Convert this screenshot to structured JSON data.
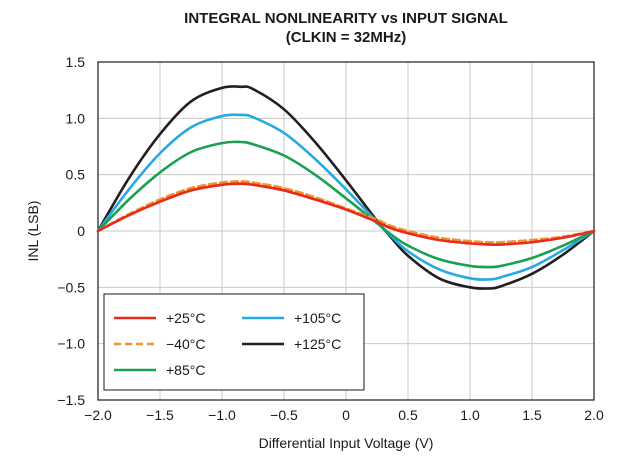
{
  "chart_data": {
    "type": "line",
    "title": "INTEGRAL NONLINEARITY vs INPUT SIGNAL",
    "subtitle": "(CLKIN = 32MHz)",
    "xlabel": "Differential Input Voltage (V)",
    "ylabel": "INL (LSB)",
    "xlim": [
      -2.0,
      2.0
    ],
    "ylim": [
      -1.5,
      1.5
    ],
    "xticks": [
      -2.0,
      -1.5,
      -1.0,
      -0.5,
      0,
      0.5,
      1.0,
      1.5,
      2.0
    ],
    "xtick_labels": [
      "−2.0",
      "−1.5",
      "−1.0",
      "−0.5",
      "0",
      "0.5",
      "1.0",
      "1.5",
      "2.0"
    ],
    "yticks": [
      1.5,
      1.0,
      0.5,
      0,
      -0.5,
      -1.0,
      -1.5
    ],
    "ytick_labels": [
      "1.5",
      "1.0",
      "0.5",
      "0",
      "−0.5",
      "−1.0",
      "−1.5"
    ],
    "grid": true,
    "legend_position": "bottom-left",
    "x": [
      -2.0,
      -1.75,
      -1.5,
      -1.25,
      -1.0,
      -0.85,
      -0.75,
      -0.5,
      -0.25,
      0,
      0.25,
      0.35,
      0.5,
      0.75,
      1.0,
      1.15,
      1.25,
      1.5,
      1.75,
      2.0
    ],
    "series": [
      {
        "name": "+25°C",
        "color": "#e8291c",
        "dash": "solid",
        "values": [
          0,
          0.14,
          0.26,
          0.36,
          0.41,
          0.42,
          0.41,
          0.36,
          0.28,
          0.19,
          0.08,
          0.03,
          -0.02,
          -0.08,
          -0.11,
          -0.12,
          -0.12,
          -0.1,
          -0.06,
          0
        ]
      },
      {
        "name": "−40°C",
        "color": "#f0922e",
        "dash": "dashed",
        "values": [
          0,
          0.15,
          0.28,
          0.38,
          0.43,
          0.44,
          0.43,
          0.38,
          0.3,
          0.2,
          0.1,
          0.05,
          0.0,
          -0.06,
          -0.09,
          -0.1,
          -0.1,
          -0.08,
          -0.05,
          0
        ]
      },
      {
        "name": "+85°C",
        "color": "#1aa050",
        "dash": "solid",
        "values": [
          0,
          0.28,
          0.52,
          0.7,
          0.78,
          0.79,
          0.77,
          0.67,
          0.5,
          0.29,
          0.07,
          -0.02,
          -0.13,
          -0.25,
          -0.31,
          -0.32,
          -0.31,
          -0.24,
          -0.13,
          0
        ]
      },
      {
        "name": "+105°C",
        "color": "#27a9e1",
        "dash": "solid",
        "values": [
          0,
          0.37,
          0.69,
          0.92,
          1.02,
          1.03,
          1.01,
          0.87,
          0.64,
          0.37,
          0.08,
          -0.03,
          -0.18,
          -0.34,
          -0.42,
          -0.43,
          -0.41,
          -0.32,
          -0.17,
          0
        ]
      },
      {
        "name": "+125°C",
        "color": "#231f20",
        "dash": "solid",
        "values": [
          0,
          0.47,
          0.86,
          1.15,
          1.27,
          1.28,
          1.26,
          1.08,
          0.79,
          0.45,
          0.09,
          -0.04,
          -0.22,
          -0.42,
          -0.5,
          -0.51,
          -0.49,
          -0.38,
          -0.21,
          0
        ]
      }
    ],
    "legend_order": [
      "+25°C",
      "+105°C",
      "−40°C",
      "+125°C",
      "+85°C"
    ]
  }
}
